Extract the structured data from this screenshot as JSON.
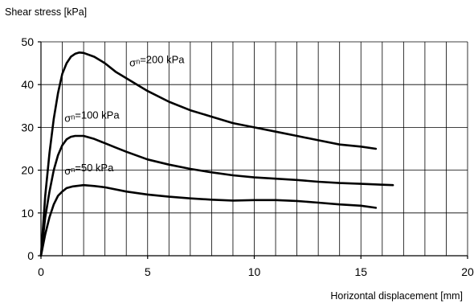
{
  "chart_data": {
    "type": "line",
    "ylabel": "Shear stress [kPa]",
    "xlabel": "Horizontal displacement [mm]",
    "xlim": [
      0,
      20
    ],
    "ylim": [
      0,
      50
    ],
    "x_ticks": [
      0,
      5,
      10,
      15,
      20
    ],
    "y_ticks": [
      0,
      10,
      20,
      30,
      40,
      50
    ],
    "x_minor_step": 1,
    "y_major_step": 10,
    "grid": true,
    "series": [
      {
        "name": "σn=200 kPa",
        "x": [
          0,
          0.2,
          0.4,
          0.6,
          0.8,
          1.0,
          1.2,
          1.4,
          1.6,
          1.8,
          2.0,
          2.5,
          3.0,
          3.5,
          4.0,
          5.0,
          6.0,
          7.0,
          8.0,
          9.0,
          10.0,
          11.0,
          12.0,
          13.0,
          14.0,
          15.0,
          15.7
        ],
        "y": [
          0,
          14,
          24,
          32,
          38,
          42.5,
          45,
          46.5,
          47.2,
          47.5,
          47.4,
          46.5,
          45,
          43,
          41.5,
          38.5,
          36,
          34,
          32.5,
          31,
          30,
          29,
          28,
          27,
          26,
          25.5,
          25
        ]
      },
      {
        "name": "σn=100 kPa",
        "x": [
          0,
          0.2,
          0.4,
          0.6,
          0.8,
          1.0,
          1.2,
          1.4,
          1.6,
          2.0,
          2.5,
          3.0,
          3.5,
          4.0,
          5.0,
          6.0,
          7.0,
          8.0,
          9.0,
          10.0,
          11.0,
          12.0,
          13.0,
          14.0,
          15.0,
          16.0,
          16.5
        ],
        "y": [
          0,
          9,
          15,
          20,
          23.5,
          25.8,
          27.2,
          27.8,
          28,
          28,
          27.3,
          26.3,
          25.3,
          24.3,
          22.5,
          21.3,
          20.3,
          19.5,
          18.8,
          18.3,
          18,
          17.7,
          17.3,
          17,
          16.8,
          16.6,
          16.5
        ]
      },
      {
        "name": "σn=50 kPa",
        "x": [
          0,
          0.2,
          0.4,
          0.6,
          0.8,
          1.0,
          1.2,
          1.5,
          2.0,
          2.5,
          3.0,
          4.0,
          5.0,
          6.0,
          7.0,
          8.0,
          9.0,
          10.0,
          11.0,
          12.0,
          13.0,
          14.0,
          15.0,
          15.7
        ],
        "y": [
          0,
          5,
          9,
          12,
          14,
          15,
          15.8,
          16.2,
          16.5,
          16.3,
          16,
          15,
          14.3,
          13.8,
          13.4,
          13.1,
          12.9,
          13,
          13,
          12.8,
          12.4,
          12,
          11.7,
          11.2
        ]
      }
    ],
    "annotations": [
      {
        "symbol": "σ",
        "sub": "n",
        "rest": "=200 kPa",
        "x": 4.15,
        "y": 44.3,
        "series": 0
      },
      {
        "symbol": "σ",
        "sub": "n",
        "rest": "=100 kPa",
        "x": 1.1,
        "y": 31.3,
        "series": 1
      },
      {
        "symbol": "σ",
        "sub": "n",
        "rest": "=50 kPa",
        "x": 1.1,
        "y": 19.0,
        "series": 2
      }
    ]
  }
}
